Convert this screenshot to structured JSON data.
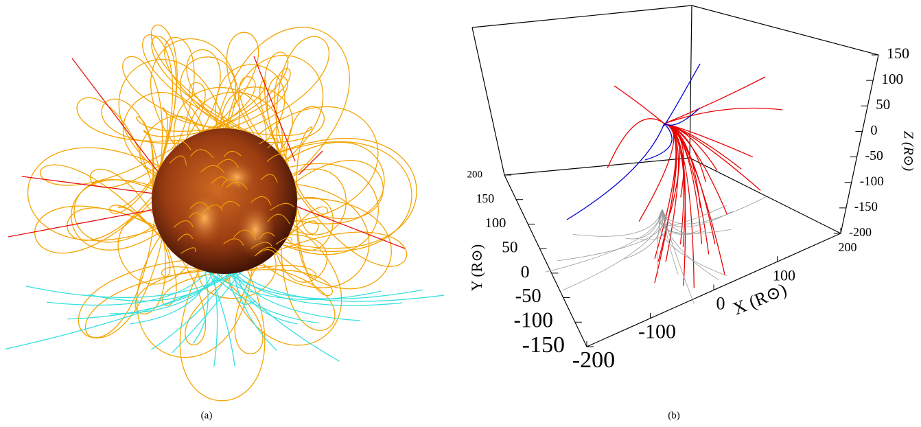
{
  "panel_a": {
    "caption": "(a)"
  },
  "panel_b": {
    "caption": "(b)",
    "x_axis": {
      "label": "X (R⊙)",
      "ticks": [
        "-200",
        "-100",
        "0",
        "100",
        "200"
      ]
    },
    "y_axis": {
      "label": "Y (R⊙)",
      "ticks": [
        "-150",
        "-100",
        "-50",
        "0",
        "50",
        "100",
        "150",
        "200"
      ]
    },
    "z_axis": {
      "label": "Z (R⊙)",
      "ticks": [
        "-200",
        "-150",
        "-100",
        "-50",
        "0",
        "50",
        "100",
        "150"
      ]
    }
  }
}
